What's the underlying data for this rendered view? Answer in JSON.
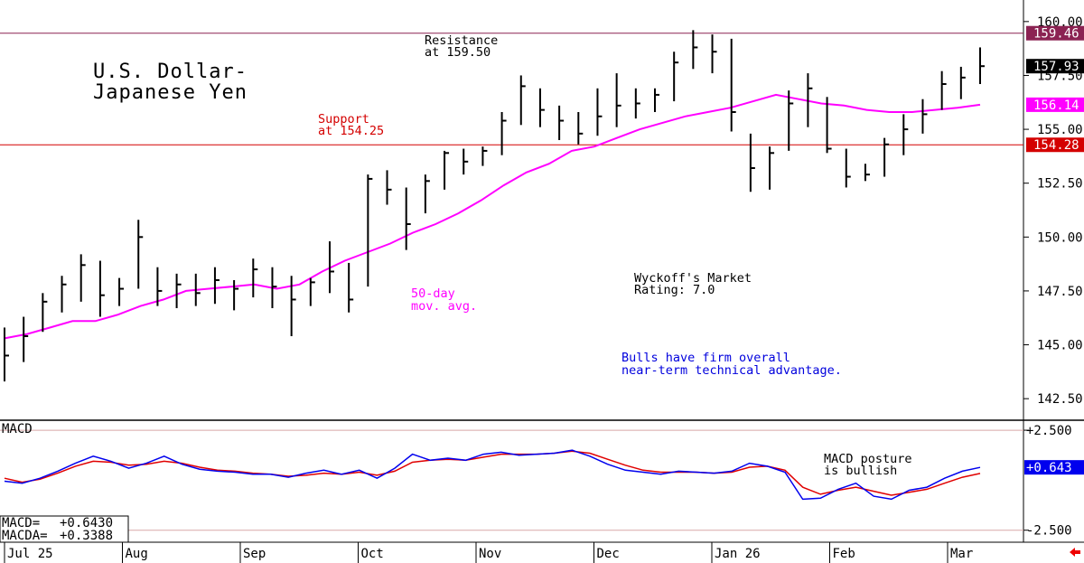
{
  "chart_data": [
    {
      "type": "ohlc",
      "title": "U.S. Dollar-Japanese Yen",
      "title_lines": [
        "U.S. Dollar-",
        "Japanese Yen"
      ],
      "ylim": [
        141.5,
        161.0
      ],
      "y_ticks": [
        "160.00",
        "157.50",
        "155.00",
        "152.50",
        "150.00",
        "147.50",
        "145.00",
        "142.50"
      ],
      "x_labels": [
        "Jul 25",
        "Aug",
        "Sep",
        "Oct",
        "Nov",
        "Dec",
        "Jan 26",
        "Feb",
        "Mar"
      ],
      "grid": false,
      "levels": [
        {
          "name": "Resistance",
          "value": 159.46,
          "tag": "159.46",
          "color": "#8b2252",
          "label_lines": [
            "Resistance",
            "at 159.50"
          ]
        },
        {
          "name": "Support",
          "value": 154.28,
          "tag": "154.28",
          "color": "#d40000",
          "label_lines": [
            "Support",
            "at 154.25"
          ]
        }
      ],
      "last_price": {
        "value": 157.93,
        "tag": "157.93"
      },
      "moving_average": {
        "name": "50-day mov. avg.",
        "label_lines": [
          "50-day",
          "mov. avg."
        ],
        "color": "#ff00ff",
        "last": 156.14,
        "tag": "156.14",
        "values": [
          145.3,
          145.5,
          145.8,
          146.1,
          146.1,
          146.4,
          146.8,
          147.1,
          147.5,
          147.6,
          147.7,
          147.8,
          147.6,
          147.8,
          148.4,
          148.9,
          149.3,
          149.7,
          150.2,
          150.6,
          151.1,
          151.7,
          152.4,
          153.0,
          153.4,
          154.0,
          154.2,
          154.6,
          155.0,
          155.3,
          155.6,
          155.8,
          156.0,
          156.3,
          156.6,
          156.4,
          156.2,
          156.1,
          155.9,
          155.8,
          155.8,
          155.9,
          156.0,
          156.14
        ]
      },
      "bars": [
        [
          0,
          145.8,
          143.3,
          144.5
        ],
        [
          1,
          146.3,
          144.2,
          145.4
        ],
        [
          2,
          147.4,
          145.6,
          147.0
        ],
        [
          3,
          148.2,
          146.5,
          147.8
        ],
        [
          4,
          149.2,
          147.0,
          148.7
        ],
        [
          5,
          148.9,
          146.3,
          147.3
        ],
        [
          6,
          148.1,
          146.8,
          147.6
        ],
        [
          7,
          150.8,
          147.6,
          150.0
        ],
        [
          8,
          148.6,
          146.8,
          147.5
        ],
        [
          9,
          148.3,
          146.7,
          147.8
        ],
        [
          10,
          148.3,
          146.8,
          147.4
        ],
        [
          11,
          148.6,
          146.9,
          148.0
        ],
        [
          12,
          148.0,
          146.6,
          147.6
        ],
        [
          13,
          149.0,
          147.2,
          148.5
        ],
        [
          14,
          148.6,
          146.7,
          147.7
        ],
        [
          15,
          148.2,
          145.4,
          147.1
        ],
        [
          16,
          148.1,
          146.8,
          147.9
        ],
        [
          17,
          149.8,
          147.4,
          148.4
        ],
        [
          18,
          148.8,
          146.5,
          147.1
        ],
        [
          19,
          152.9,
          147.7,
          152.7
        ],
        [
          20,
          153.1,
          151.5,
          152.2
        ],
        [
          21,
          152.3,
          149.4,
          150.6
        ],
        [
          22,
          152.9,
          151.1,
          152.6
        ],
        [
          23,
          154.0,
          152.2,
          153.9
        ],
        [
          24,
          154.1,
          152.9,
          153.5
        ],
        [
          25,
          154.2,
          153.3,
          154.0
        ],
        [
          26,
          155.8,
          153.8,
          155.4
        ],
        [
          27,
          157.5,
          155.2,
          157.0
        ],
        [
          28,
          156.9,
          155.1,
          155.9
        ],
        [
          29,
          156.1,
          154.5,
          155.4
        ],
        [
          30,
          155.8,
          154.3,
          154.8
        ],
        [
          31,
          156.9,
          154.7,
          155.6
        ],
        [
          32,
          157.6,
          155.1,
          156.1
        ],
        [
          33,
          156.9,
          155.5,
          156.2
        ],
        [
          34,
          156.9,
          155.8,
          156.6
        ],
        [
          35,
          158.6,
          156.3,
          158.1
        ],
        [
          36,
          159.6,
          157.8,
          158.8
        ],
        [
          37,
          159.4,
          157.6,
          158.6
        ],
        [
          38,
          159.2,
          154.9,
          155.8
        ],
        [
          39,
          154.8,
          152.1,
          153.2
        ],
        [
          40,
          154.2,
          152.2,
          153.9
        ],
        [
          41,
          156.8,
          154.0,
          156.2
        ],
        [
          42,
          157.6,
          155.1,
          156.9
        ],
        [
          43,
          156.5,
          153.9,
          154.1
        ],
        [
          44,
          154.1,
          152.3,
          152.8
        ],
        [
          45,
          153.4,
          152.6,
          152.9
        ],
        [
          46,
          154.6,
          152.8,
          154.3
        ],
        [
          47,
          155.7,
          153.8,
          155.0
        ],
        [
          48,
          156.4,
          154.8,
          155.7
        ],
        [
          49,
          157.7,
          155.9,
          157.1
        ],
        [
          50,
          157.9,
          156.4,
          157.4
        ],
        [
          51,
          158.8,
          157.1,
          157.93
        ]
      ]
    },
    {
      "type": "line",
      "title": "MACD",
      "ylim": [
        -3.1,
        3.0
      ],
      "y_ticks": [
        "+2.500",
        "-2.500"
      ],
      "reference_lines": [
        2.5,
        -2.5
      ],
      "grid": false,
      "readout": [
        {
          "label": "MACD=",
          "value": "+0.6430"
        },
        {
          "label": "MACDA=",
          "value": "+0.3388"
        }
      ],
      "annotation_lines": [
        "MACD posture",
        "is bullish"
      ],
      "last_tag": "+0.643",
      "series": [
        {
          "name": "MACD",
          "color": "#0000ee",
          "values": [
            -0.05,
            -0.15,
            0.1,
            0.45,
            0.85,
            1.2,
            0.95,
            0.6,
            0.85,
            1.2,
            0.8,
            0.55,
            0.45,
            0.4,
            0.3,
            0.3,
            0.15,
            0.35,
            0.5,
            0.3,
            0.5,
            0.1,
            0.6,
            1.3,
            1.0,
            1.1,
            1.0,
            1.3,
            1.4,
            1.25,
            1.3,
            1.35,
            1.5,
            1.2,
            0.8,
            0.5,
            0.4,
            0.3,
            0.45,
            0.4,
            0.35,
            0.45,
            0.85,
            0.7,
            0.4,
            -0.95,
            -0.9,
            -0.45,
            -0.15,
            -0.8,
            -0.95,
            -0.5,
            -0.35,
            0.1,
            0.45,
            0.643
          ]
        },
        {
          "name": "MACDA",
          "color": "#e00000",
          "values": [
            0.1,
            -0.1,
            0.05,
            0.35,
            0.7,
            0.95,
            0.9,
            0.75,
            0.8,
            0.95,
            0.85,
            0.65,
            0.5,
            0.45,
            0.35,
            0.3,
            0.2,
            0.25,
            0.35,
            0.3,
            0.4,
            0.25,
            0.45,
            0.9,
            1.0,
            1.05,
            1.0,
            1.15,
            1.3,
            1.3,
            1.3,
            1.35,
            1.45,
            1.35,
            1.05,
            0.75,
            0.5,
            0.4,
            0.4,
            0.4,
            0.35,
            0.4,
            0.65,
            0.7,
            0.5,
            -0.35,
            -0.7,
            -0.5,
            -0.35,
            -0.55,
            -0.75,
            -0.6,
            -0.45,
            -0.15,
            0.15,
            0.3388
          ]
        }
      ]
    }
  ],
  "ui": {
    "wyckoff_lines": [
      "Wyckoff's Market",
      "Rating: 7.0"
    ],
    "commentary_lines": [
      "Bulls have firm overall",
      "near-term technical advantage."
    ],
    "colors": {
      "bars": "#000000",
      "commentary": "#0000dd",
      "tag_macd": "#0000ee",
      "tag_last": "#000000",
      "back_arrow": "#ee0000"
    },
    "back_arrow_icon": "left-arrow-icon"
  }
}
